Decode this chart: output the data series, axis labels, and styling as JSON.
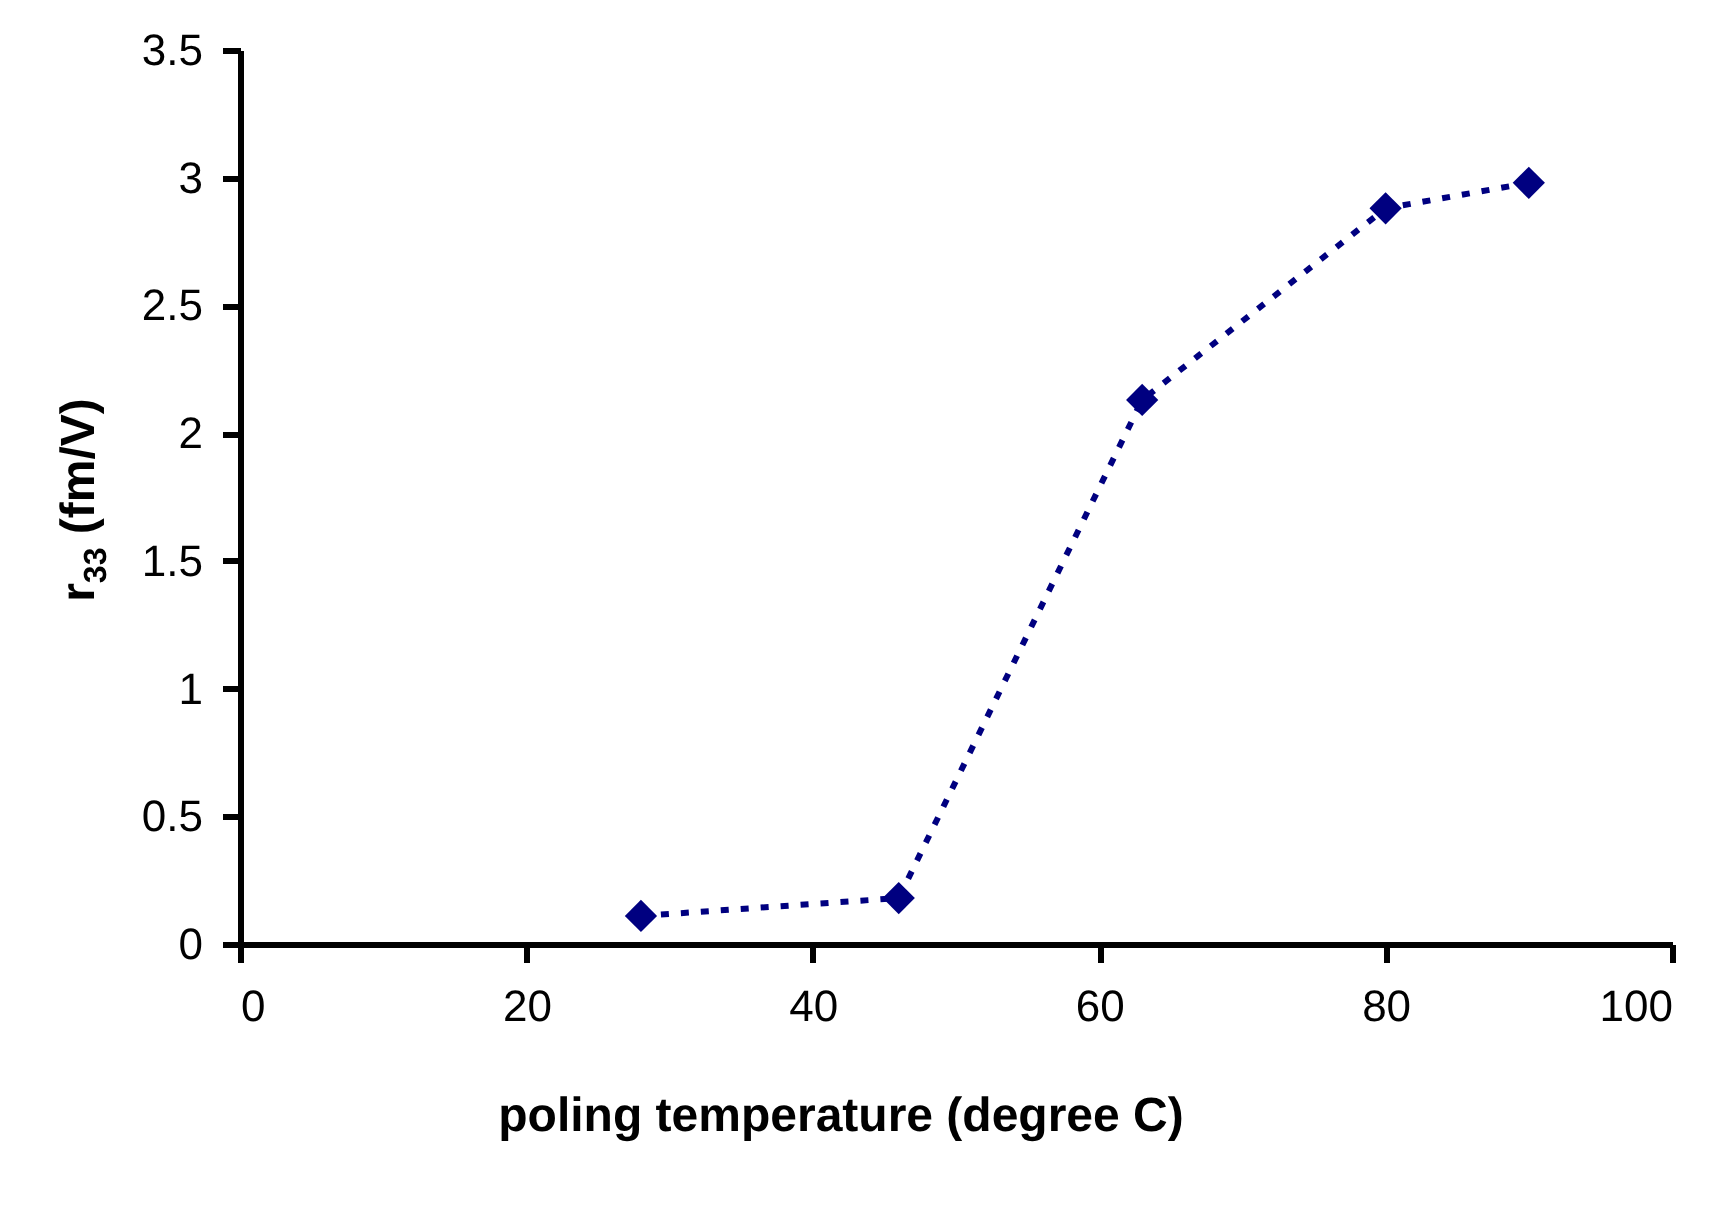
{
  "chart_data": {
    "type": "line",
    "xlabel": "poling temperature (degree C)",
    "ylabel": "r$_{33}$ (fm/V)",
    "x": [
      28,
      46,
      63,
      80,
      90
    ],
    "series": [
      {
        "color": "#000080",
        "values": [
          0.11,
          0.18,
          2.13,
          2.88,
          2.98
        ]
      }
    ],
    "xlim": [
      0,
      100
    ],
    "xticks": [
      0,
      20,
      40,
      60,
      80,
      100
    ],
    "ylim": [
      0,
      3.5
    ],
    "yticks": [
      0,
      0.5,
      1,
      1.5,
      2,
      2.5,
      3,
      3.5
    ],
    "grid": false,
    "marker": "diamond",
    "line_style": "dotted"
  }
}
